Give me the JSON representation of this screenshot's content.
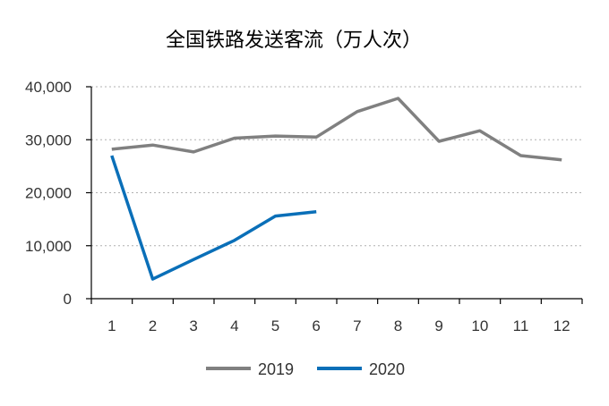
{
  "chart_data": {
    "type": "line",
    "title": "全国铁路发送客流（万人次）",
    "xlabel": "",
    "ylabel": "",
    "x": [
      1,
      2,
      3,
      4,
      5,
      6,
      7,
      8,
      9,
      10,
      11,
      12
    ],
    "x_tick_labels": [
      "1",
      "2",
      "3",
      "4",
      "5",
      "6",
      "7",
      "8",
      "9",
      "10",
      "11",
      "12"
    ],
    "ylim": [
      0,
      40000
    ],
    "y_ticks": [
      0,
      10000,
      20000,
      30000,
      40000
    ],
    "y_tick_labels": [
      "0",
      "10,000",
      "20,000",
      "30,000",
      "40,000"
    ],
    "grid": true,
    "legend_position": "bottom",
    "series": [
      {
        "name": "2019",
        "color": "#808080",
        "values": [
          28200,
          29000,
          27700,
          30300,
          30700,
          30500,
          35300,
          37800,
          29700,
          31700,
          27000,
          26200
        ]
      },
      {
        "name": "2020",
        "color": "#0a6fb8",
        "values": [
          27000,
          3700,
          7400,
          11000,
          15600,
          16400,
          null,
          null,
          null,
          null,
          null,
          null
        ]
      }
    ]
  }
}
